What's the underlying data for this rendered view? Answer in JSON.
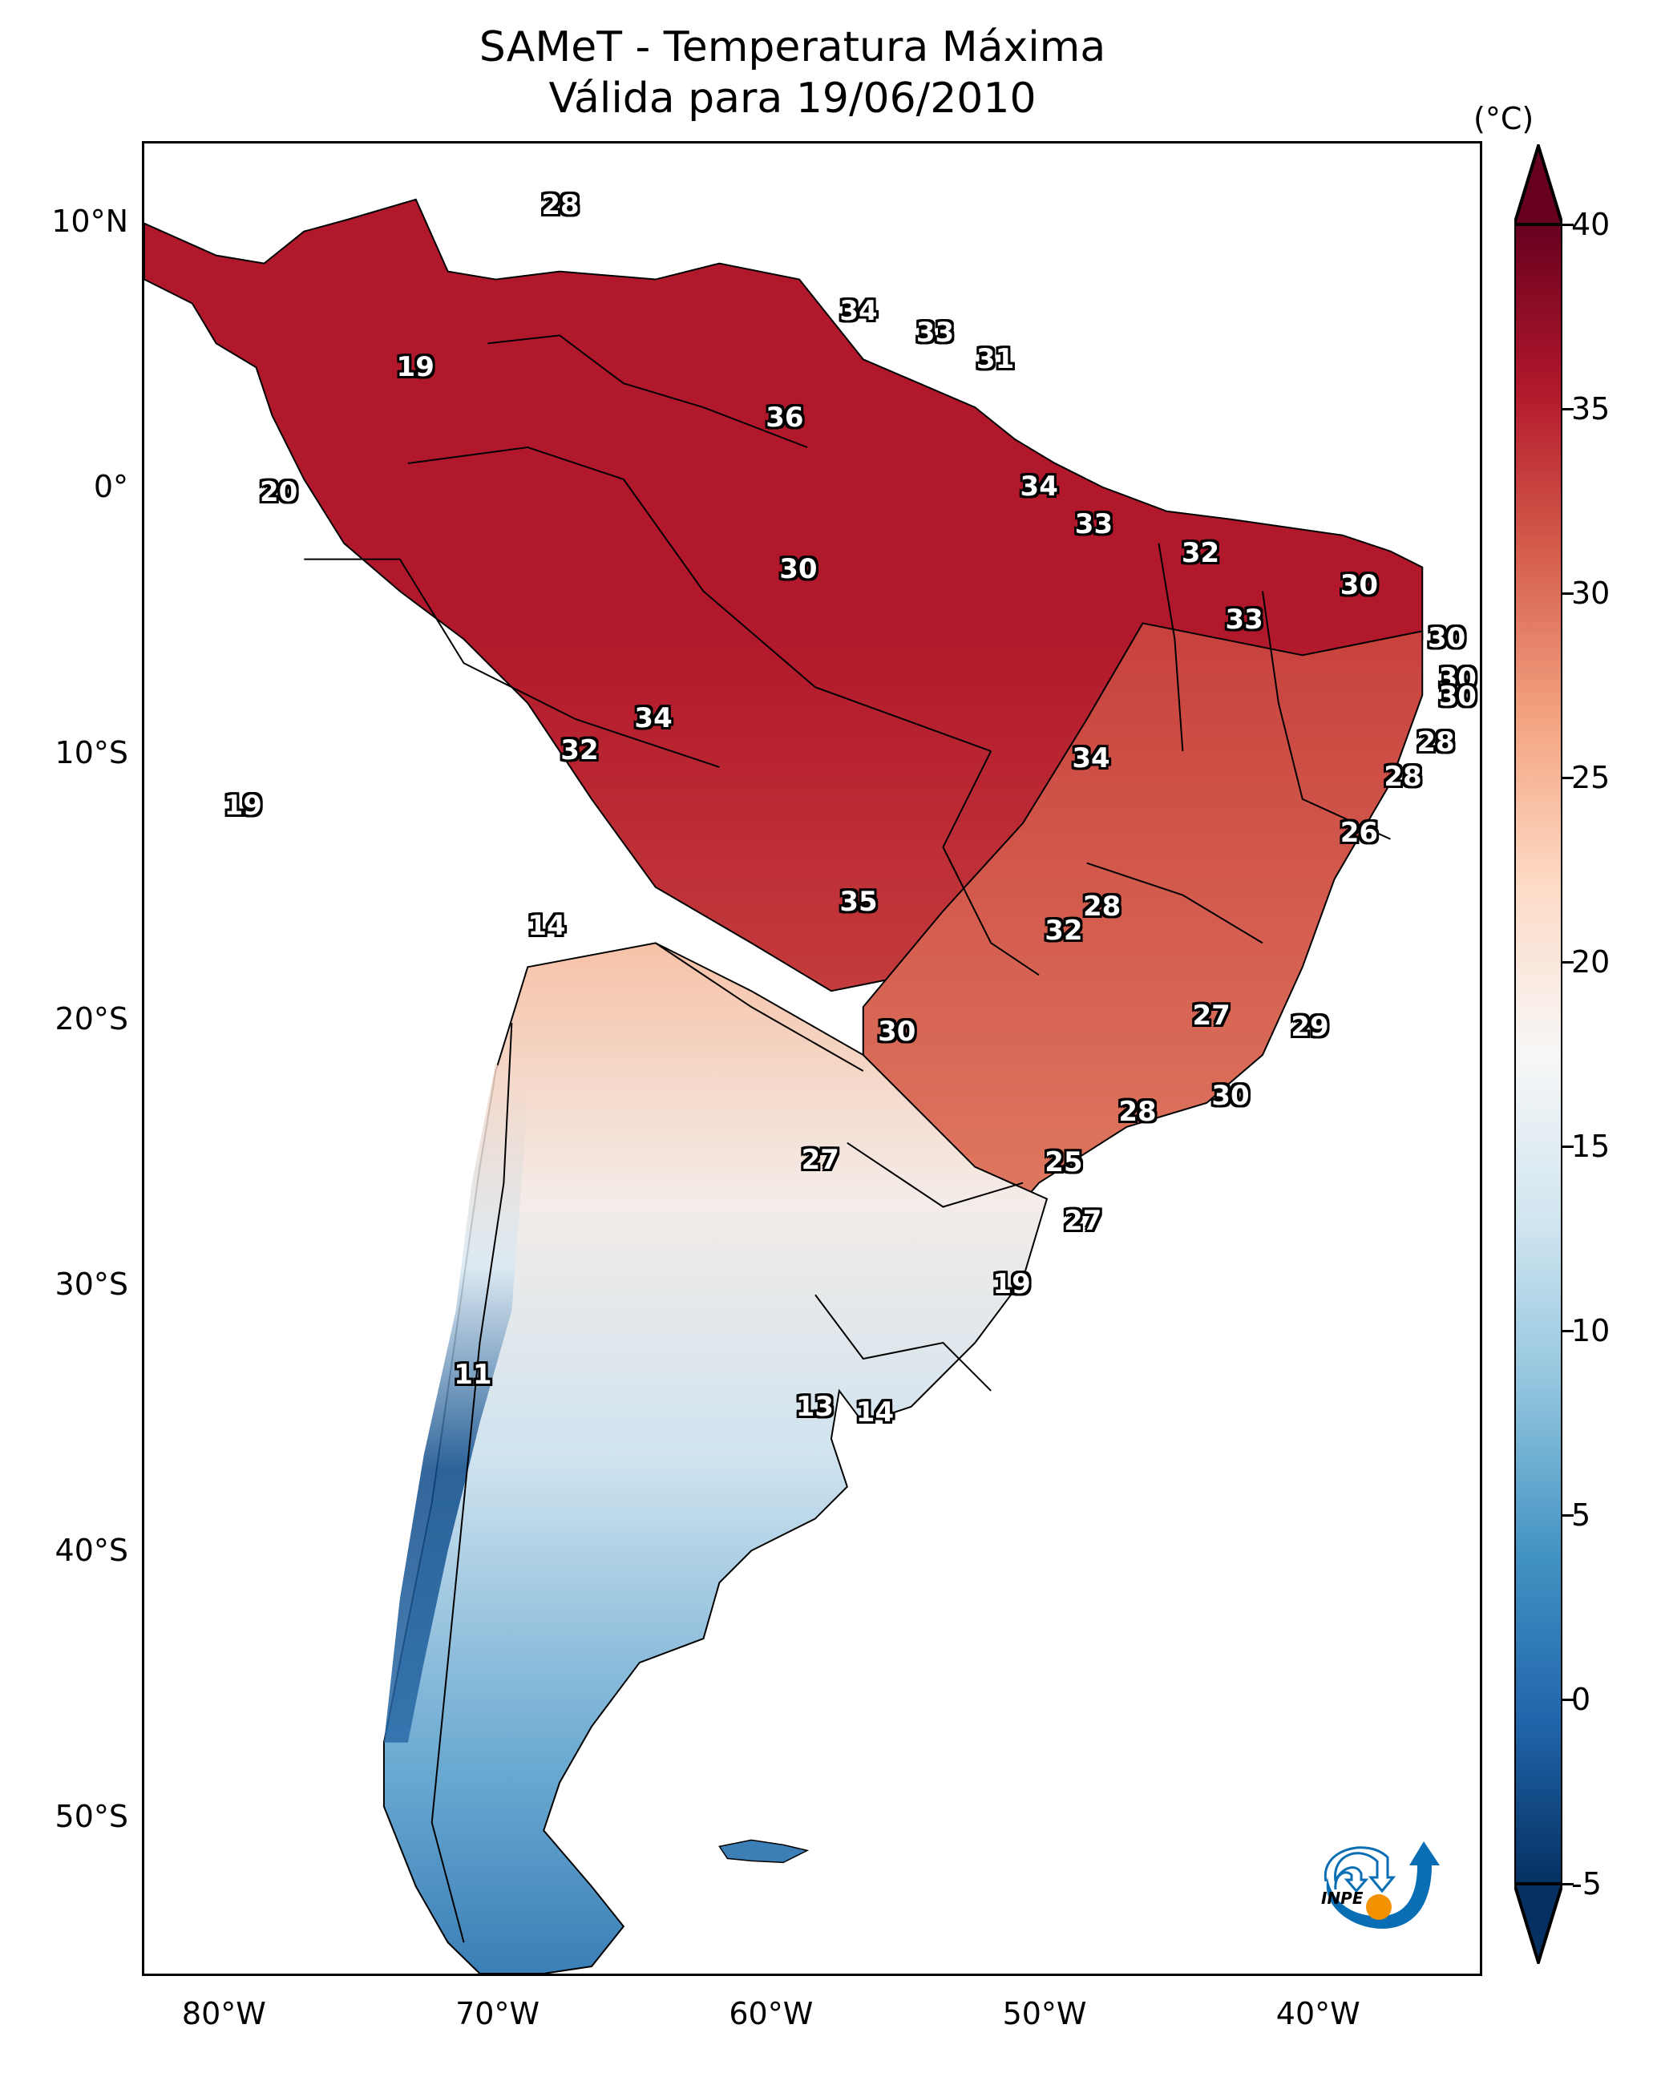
{
  "title": {
    "line1": "SAMeT - Temperatura Máxima",
    "line2": "Válida para 19/06/2010"
  },
  "map": {
    "extent": {
      "lon_min": -83,
      "lon_max": -34,
      "lat_min": -56,
      "lat_max": 13
    },
    "lat_ticks": [
      {
        "label": "10°N",
        "lat": 10
      },
      {
        "label": "0°",
        "lat": 0
      },
      {
        "label": "10°S",
        "lat": -10
      },
      {
        "label": "20°S",
        "lat": -20
      },
      {
        "label": "30°S",
        "lat": -30
      },
      {
        "label": "40°S",
        "lat": -40
      },
      {
        "label": "50°S",
        "lat": -50
      }
    ],
    "lon_ticks": [
      {
        "label": "80°W",
        "lon": -80
      },
      {
        "label": "70°W",
        "lon": -70
      },
      {
        "label": "60°W",
        "lon": -60
      },
      {
        "label": "50°W",
        "lon": -50
      },
      {
        "label": "40°W",
        "lon": -40
      }
    ],
    "stations": [
      {
        "value": "28",
        "lon": -67.7,
        "lat": 10.6
      },
      {
        "value": "34",
        "lon": -56.8,
        "lat": 6.6
      },
      {
        "value": "33",
        "lon": -54.0,
        "lat": 5.8
      },
      {
        "value": "31",
        "lon": -51.8,
        "lat": 4.8
      },
      {
        "value": "19",
        "lon": -73.0,
        "lat": 4.5
      },
      {
        "value": "36",
        "lon": -59.5,
        "lat": 2.6
      },
      {
        "value": "20",
        "lon": -78.0,
        "lat": -0.2
      },
      {
        "value": "34",
        "lon": -50.2,
        "lat": 0.0
      },
      {
        "value": "33",
        "lon": -48.2,
        "lat": -1.4
      },
      {
        "value": "30",
        "lon": -59.0,
        "lat": -3.1
      },
      {
        "value": "32",
        "lon": -44.3,
        "lat": -2.5
      },
      {
        "value": "30",
        "lon": -38.5,
        "lat": -3.7
      },
      {
        "value": "33",
        "lon": -42.7,
        "lat": -5.0
      },
      {
        "value": "30",
        "lon": -35.3,
        "lat": -5.7
      },
      {
        "value": "30",
        "lon": -34.9,
        "lat": -7.2
      },
      {
        "value": "30",
        "lon": -34.9,
        "lat": -7.9
      },
      {
        "value": "34",
        "lon": -64.3,
        "lat": -8.7
      },
      {
        "value": "32",
        "lon": -67.0,
        "lat": -9.9
      },
      {
        "value": "28",
        "lon": -35.7,
        "lat": -9.6
      },
      {
        "value": "34",
        "lon": -48.3,
        "lat": -10.2
      },
      {
        "value": "28",
        "lon": -36.9,
        "lat": -10.9
      },
      {
        "value": "19",
        "lon": -79.3,
        "lat": -12.0
      },
      {
        "value": "26",
        "lon": -38.5,
        "lat": -13.0
      },
      {
        "value": "35",
        "lon": -56.8,
        "lat": -15.6
      },
      {
        "value": "28",
        "lon": -47.9,
        "lat": -15.8
      },
      {
        "value": "14",
        "lon": -68.2,
        "lat": -16.5
      },
      {
        "value": "32",
        "lon": -49.3,
        "lat": -16.7
      },
      {
        "value": "27",
        "lon": -43.9,
        "lat": -19.9
      },
      {
        "value": "29",
        "lon": -40.3,
        "lat": -20.3
      },
      {
        "value": "30",
        "lon": -55.4,
        "lat": -20.5
      },
      {
        "value": "28",
        "lon": -46.6,
        "lat": -23.5
      },
      {
        "value": "30",
        "lon": -43.2,
        "lat": -22.9
      },
      {
        "value": "27",
        "lon": -58.2,
        "lat": -25.3
      },
      {
        "value": "25",
        "lon": -49.3,
        "lat": -25.4
      },
      {
        "value": "27",
        "lon": -48.6,
        "lat": -27.6
      },
      {
        "value": "19",
        "lon": -51.2,
        "lat": -30.0
      },
      {
        "value": "11",
        "lon": -70.9,
        "lat": -33.4
      },
      {
        "value": "13",
        "lon": -58.4,
        "lat": -34.6
      },
      {
        "value": "14",
        "lon": -56.2,
        "lat": -34.8
      }
    ]
  },
  "colorbar": {
    "unit": "(°C)",
    "min": -5,
    "max": 40,
    "extend": "both",
    "colormap": "RdBu_r",
    "ticks": [
      "40",
      "35",
      "30",
      "25",
      "20",
      "15",
      "10",
      "5",
      "0",
      "-5"
    ],
    "tick_values": [
      40,
      35,
      30,
      25,
      20,
      15,
      10,
      5,
      0,
      -5
    ],
    "colors": [
      "#053061",
      "#2166ac",
      "#4393c3",
      "#92c5de",
      "#d1e5f0",
      "#f7f7f7",
      "#fddbc7",
      "#f4a582",
      "#d6604d",
      "#b2182b",
      "#67001f"
    ]
  },
  "logo": {
    "text": "INPE",
    "arrow_color": "#0a6eb4",
    "dot_color": "#f39200"
  }
}
